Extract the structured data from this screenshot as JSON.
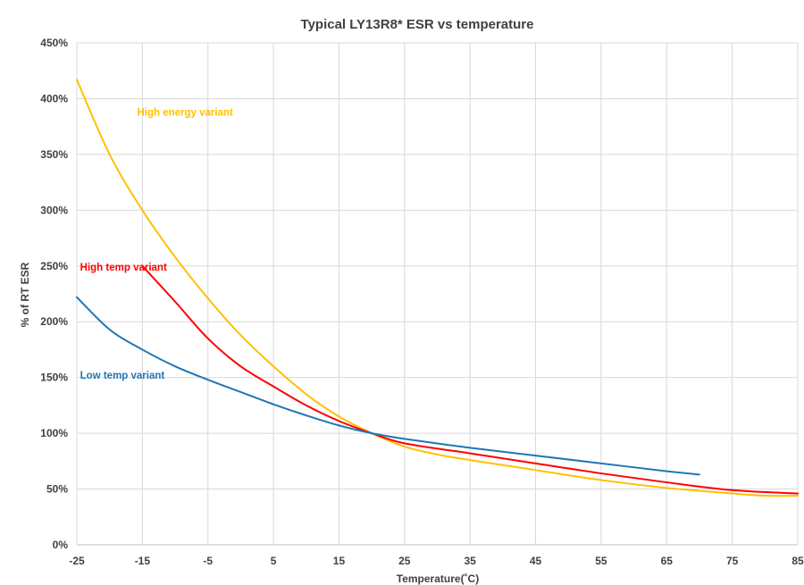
{
  "chart_data": {
    "type": "line",
    "title": "Typical LY13R8* ESR vs temperature",
    "xlabel": "Temperature(˚C)",
    "ylabel": "% of RT ESR",
    "xlim": [
      -25,
      85
    ],
    "ylim": [
      0,
      450
    ],
    "x_ticks": [
      -25,
      -15,
      -5,
      5,
      15,
      25,
      35,
      45,
      55,
      65,
      75,
      85
    ],
    "x_tick_labels": [
      "-25",
      "-15",
      "-5",
      "5",
      "15",
      "25",
      "35",
      "45",
      "55",
      "65",
      "75",
      "85"
    ],
    "y_ticks": [
      0,
      50,
      100,
      150,
      200,
      250,
      300,
      350,
      400,
      450
    ],
    "y_tick_labels": [
      "0%",
      "50%",
      "100%",
      "150%",
      "200%",
      "250%",
      "300%",
      "350%",
      "400%",
      "450%"
    ],
    "grid": true,
    "series": [
      {
        "name": "High energy variant",
        "color": "#FFC000",
        "x": [
          -25,
          -20,
          -15,
          -10,
          -5,
          0,
          5,
          10,
          15,
          20,
          25,
          30,
          35,
          45,
          55,
          65,
          75,
          80,
          85
        ],
        "values": [
          417,
          350,
          300,
          258,
          221,
          188,
          160,
          135,
          115,
          100,
          88,
          81,
          76,
          67,
          58,
          51,
          46,
          44,
          44
        ]
      },
      {
        "name": "High temp variant",
        "color": "#FF0000",
        "x": [
          -15,
          -10,
          -5,
          0,
          5,
          10,
          15,
          20,
          25,
          35,
          45,
          55,
          65,
          75,
          85
        ],
        "values": [
          250,
          218,
          185,
          160,
          142,
          125,
          111,
          100,
          91,
          82,
          73,
          64,
          56,
          49,
          46
        ]
      },
      {
        "name": "Low temp variant",
        "color": "#1F77B4",
        "x": [
          -25,
          -20,
          -15,
          -10,
          -5,
          0,
          5,
          10,
          15,
          20,
          25,
          35,
          45,
          55,
          65,
          70
        ],
        "values": [
          222,
          193,
          175,
          160,
          148,
          137,
          126,
          116,
          107,
          100,
          95,
          87,
          80,
          73,
          66,
          63
        ]
      }
    ],
    "annotations": [
      {
        "text": "High energy variant",
        "color": "#FFC000",
        "x": -15.8,
        "y": 388
      },
      {
        "text": "High temp variant",
        "color": "#FF0000",
        "x": -24.5,
        "y": 249
      },
      {
        "text": "Low temp variant",
        "color": "#1F77B4",
        "x": -24.5,
        "y": 152
      }
    ]
  }
}
